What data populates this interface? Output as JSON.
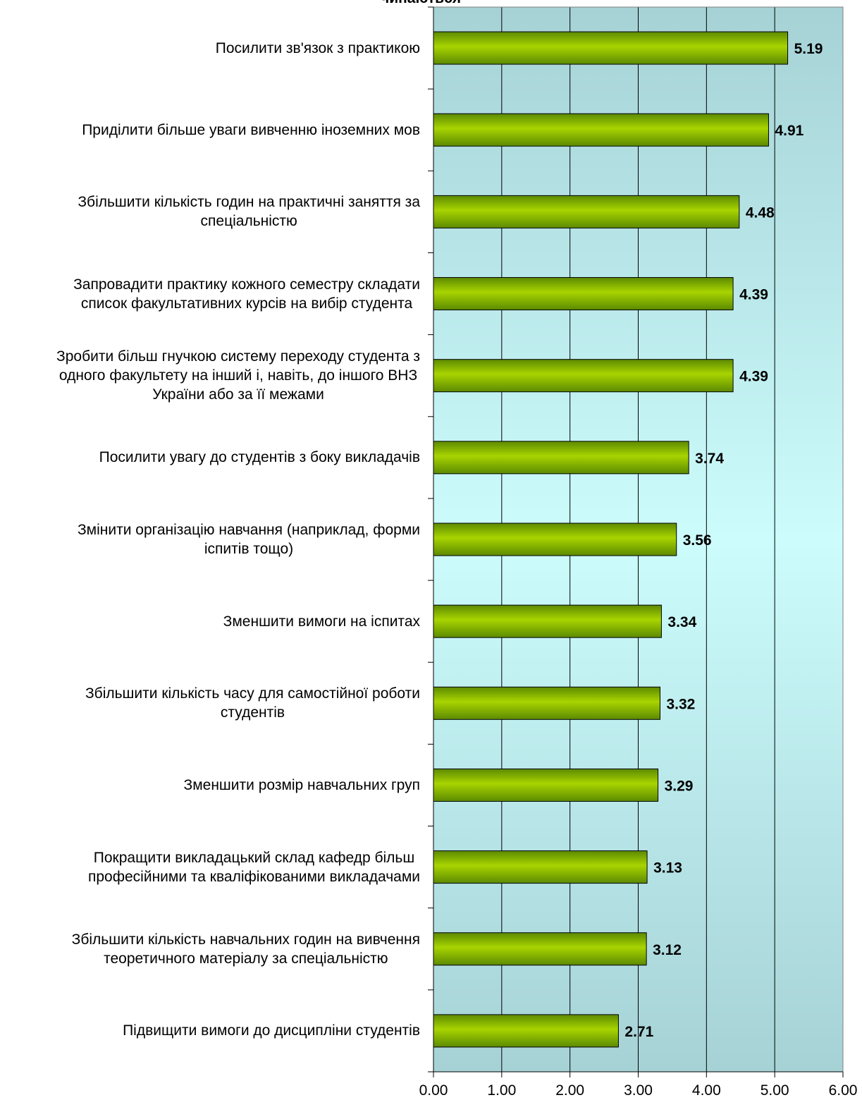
{
  "title_fragment": "чинаються",
  "chart_data": {
    "type": "bar",
    "orientation": "horizontal",
    "categories": [
      "Посилити зв'язок з практикою",
      "Приділити більше уваги вивченню іноземних мов",
      "Збільшити кількість годин на практичні заняття за\nспеціальністю",
      "Запровадити практику кожного семестру складати\nсписок факультативних курсів на вибір студента",
      "Зробити більш гнучкою систему переходу студента з\nодного факультету на інший і, навіть, до іншого ВНЗ\nУкраїни або за її межами",
      "Посилити увагу до студентів з боку викладачів",
      "Змінити організацію навчання (наприклад, форми\nіспитів тощо)",
      "Зменшити вимоги на іспитах",
      "Збільшити кількість часу для самостійної роботи\nстудентів",
      "Зменшити розмір навчальних груп",
      "Покращити викладацький склад кафедр більш\nпрофесійними та кваліфікованими викладачами",
      "Збільшити кількість навчальних годин на вивчення\nтеоретичного матеріалу за спеціальністю",
      "Підвищити вимоги до дисципліни студентів"
    ],
    "values": [
      5.19,
      4.91,
      4.48,
      4.39,
      4.39,
      3.74,
      3.56,
      3.34,
      3.32,
      3.29,
      3.13,
      3.12,
      2.71
    ],
    "value_labels": [
      "5.19",
      "4.91",
      "4.48",
      "4.39",
      "4.39",
      "3.74",
      "3.56",
      "3.34",
      "3.32",
      "3.29",
      "3.13",
      "3.12",
      "2.71"
    ],
    "x_ticks": [
      "0.00",
      "1.00",
      "2.00",
      "3.00",
      "4.00",
      "5.00",
      "6.00"
    ],
    "xlim": [
      0,
      6
    ],
    "grid": "vertical",
    "legend": "none",
    "colors": {
      "bar_light": "#a8d400",
      "bar_dark": "#5c8a00",
      "bg_edge": "#a6d2d6",
      "bg_center": "#ccfcfc",
      "grid": "#000000"
    }
  }
}
